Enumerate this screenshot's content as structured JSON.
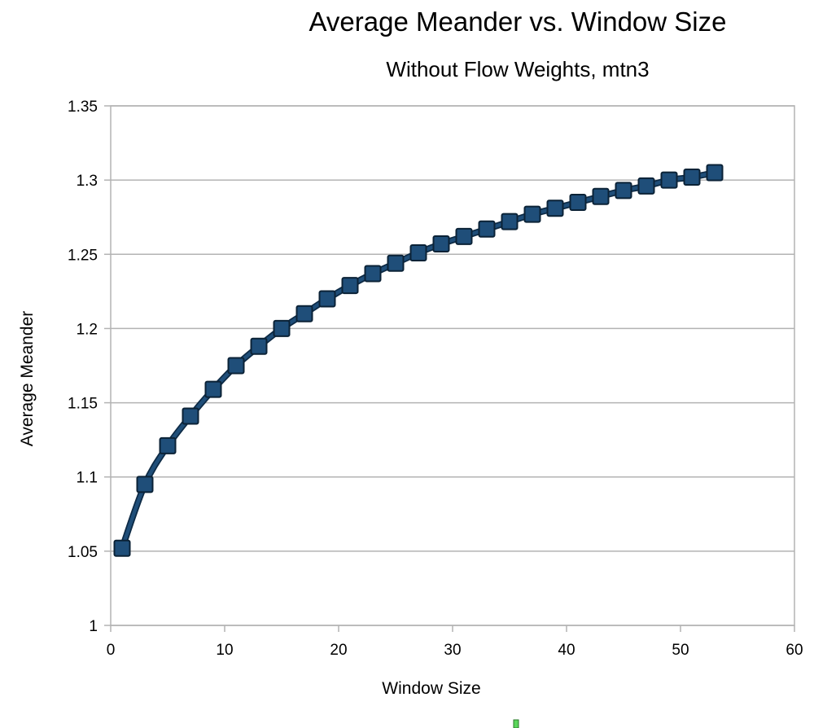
{
  "chart_data": {
    "type": "line",
    "title": "Average Meander vs. Window Size",
    "subtitle": "Without Flow Weights, mtn3",
    "xlabel": "Window Size",
    "ylabel": "Average Meander",
    "xlim": [
      0,
      60
    ],
    "ylim": [
      1,
      1.35
    ],
    "x_ticks": [
      "0",
      "10",
      "20",
      "30",
      "40",
      "50",
      "60"
    ],
    "y_ticks": [
      "1",
      "1.05",
      "1.1",
      "1.15",
      "1.2",
      "1.25",
      "1.3",
      "1.35"
    ],
    "grid": "horizontal",
    "marker": "square",
    "series": [
      {
        "color": "#1f4e79",
        "x": [
          1,
          3,
          5,
          7,
          9,
          11,
          13,
          15,
          17,
          19,
          21,
          23,
          25,
          27,
          29,
          31,
          33,
          35,
          37,
          39,
          41,
          43,
          45,
          47,
          49,
          51,
          53
        ],
        "y": [
          1.052,
          1.095,
          1.121,
          1.141,
          1.159,
          1.175,
          1.188,
          1.2,
          1.21,
          1.22,
          1.229,
          1.237,
          1.244,
          1.251,
          1.257,
          1.262,
          1.267,
          1.272,
          1.277,
          1.281,
          1.285,
          1.289,
          1.293,
          1.296,
          1.3,
          1.302,
          1.305
        ]
      }
    ]
  }
}
